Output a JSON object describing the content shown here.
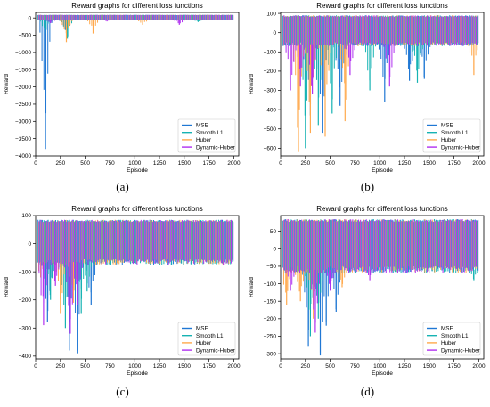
{
  "series_colors": {
    "MSE": "#1f77d4",
    "Smooth L1": "#16b3b3",
    "Huber": "#ffa94d",
    "Dynamic-Huber": "#b030f0"
  },
  "chart_data": [
    {
      "panel": "(a)",
      "type": "line",
      "title": "Reward graphs for different loss functions",
      "xlabel": "Episode",
      "ylabel": "Reward",
      "xlim": [
        0,
        2050
      ],
      "ylim": [
        -4000,
        160
      ],
      "xticks": [
        0,
        250,
        500,
        750,
        1000,
        1250,
        1500,
        1750,
        2000
      ],
      "yticks": [
        -4000,
        -3500,
        -3000,
        -2500,
        -2000,
        -1500,
        -1000,
        -500,
        0
      ],
      "legend_position": "lower-right",
      "band": [
        -60,
        90
      ],
      "series": [
        {
          "name": "MSE",
          "dips": [
            [
              100,
              -3800
            ],
            [
              300,
              -350
            ]
          ]
        },
        {
          "name": "Smooth L1",
          "dips": [
            [
              95,
              -450
            ],
            [
              320,
              -600
            ],
            [
              1640,
              -120
            ]
          ]
        },
        {
          "name": "Huber",
          "dips": [
            [
              310,
              -700
            ],
            [
              580,
              -450
            ],
            [
              1080,
              -200
            ]
          ]
        },
        {
          "name": "Dynamic-Huber",
          "dips": [
            [
              150,
              -150
            ],
            [
              720,
              -100
            ],
            [
              1450,
              -200
            ]
          ]
        }
      ]
    },
    {
      "panel": "(b)",
      "type": "line",
      "title": "Reward graphs for different loss functions",
      "xlabel": "Episode",
      "ylabel": "Reward",
      "xlim": [
        0,
        2050
      ],
      "ylim": [
        -640,
        105
      ],
      "xticks": [
        0,
        250,
        500,
        750,
        1000,
        1250,
        1500,
        1750,
        2000
      ],
      "yticks": [
        -600,
        -500,
        -400,
        -300,
        -200,
        -100,
        0,
        100
      ],
      "legend_position": "lower-right",
      "band": [
        -60,
        90
      ],
      "series": [
        {
          "name": "MSE",
          "dips": [
            [
              300,
              -430
            ],
            [
              420,
              -520
            ],
            [
              600,
              -380
            ],
            [
              1050,
              -360
            ],
            [
              1300,
              -250
            ],
            [
              1450,
              -240
            ]
          ]
        },
        {
          "name": "Smooth L1",
          "dips": [
            [
              250,
              -600
            ],
            [
              380,
              -480
            ],
            [
              520,
              -420
            ],
            [
              900,
              -300
            ],
            [
              1380,
              -260
            ]
          ]
        },
        {
          "name": "Huber",
          "dips": [
            [
              180,
              -620
            ],
            [
              300,
              -520
            ],
            [
              450,
              -540
            ],
            [
              650,
              -460
            ],
            [
              1950,
              -220
            ]
          ]
        },
        {
          "name": "Dynamic-Huber",
          "dips": [
            [
              100,
              -300
            ],
            [
              200,
              -280
            ],
            [
              320,
              -320
            ],
            [
              700,
              -220
            ],
            [
              1100,
              -280
            ]
          ]
        }
      ]
    },
    {
      "panel": "(c)",
      "type": "line",
      "title": "Reward graphs for different loss functions",
      "xlabel": "Episode",
      "ylabel": "Reward",
      "xlim": [
        0,
        2050
      ],
      "ylim": [
        -410,
        100
      ],
      "xticks": [
        0,
        250,
        500,
        750,
        1000,
        1250,
        1500,
        1750,
        2000
      ],
      "yticks": [
        -400,
        -300,
        -200,
        -100,
        0,
        100
      ],
      "legend_position": "lower-right",
      "band": [
        -65,
        85
      ],
      "series": [
        {
          "name": "MSE",
          "dips": [
            [
              120,
              -280
            ],
            [
              340,
              -380
            ],
            [
              420,
              -390
            ],
            [
              560,
              -220
            ]
          ]
        },
        {
          "name": "Smooth L1",
          "dips": [
            [
              150,
              -200
            ],
            [
              300,
              -300
            ],
            [
              460,
              -250
            ],
            [
              520,
              -170
            ]
          ]
        },
        {
          "name": "Huber",
          "dips": [
            [
              50,
              -120
            ],
            [
              250,
              -250
            ],
            [
              380,
              -210
            ]
          ]
        },
        {
          "name": "Dynamic-Huber",
          "dips": [
            [
              80,
              -290
            ],
            [
              200,
              -150
            ],
            [
              350,
              -320
            ],
            [
              420,
              -220
            ]
          ]
        }
      ]
    },
    {
      "panel": "(d)",
      "type": "line",
      "title": "Reward graphs for different loss functions",
      "xlabel": "Episode",
      "ylabel": "Reward",
      "xlim": [
        0,
        2050
      ],
      "ylim": [
        -315,
        95
      ],
      "xticks": [
        0,
        250,
        500,
        750,
        1000,
        1250,
        1500,
        1750,
        2000
      ],
      "yticks": [
        -300,
        -250,
        -200,
        -150,
        -100,
        -50,
        0,
        50
      ],
      "legend_position": "lower-right",
      "band": [
        -60,
        85
      ],
      "series": [
        {
          "name": "MSE",
          "dips": [
            [
              280,
              -280
            ],
            [
              400,
              -305
            ],
            [
              460,
              -220
            ],
            [
              560,
              -180
            ]
          ]
        },
        {
          "name": "Smooth L1",
          "dips": [
            [
              300,
              -250
            ],
            [
              380,
              -200
            ],
            [
              1950,
              -90
            ]
          ]
        },
        {
          "name": "Huber",
          "dips": [
            [
              60,
              -160
            ],
            [
              200,
              -150
            ],
            [
              330,
              -200
            ],
            [
              620,
              -110
            ]
          ]
        },
        {
          "name": "Dynamic-Huber",
          "dips": [
            [
              100,
              -120
            ],
            [
              350,
              -240
            ],
            [
              500,
              -120
            ],
            [
              900,
              -90
            ]
          ]
        }
      ]
    }
  ]
}
